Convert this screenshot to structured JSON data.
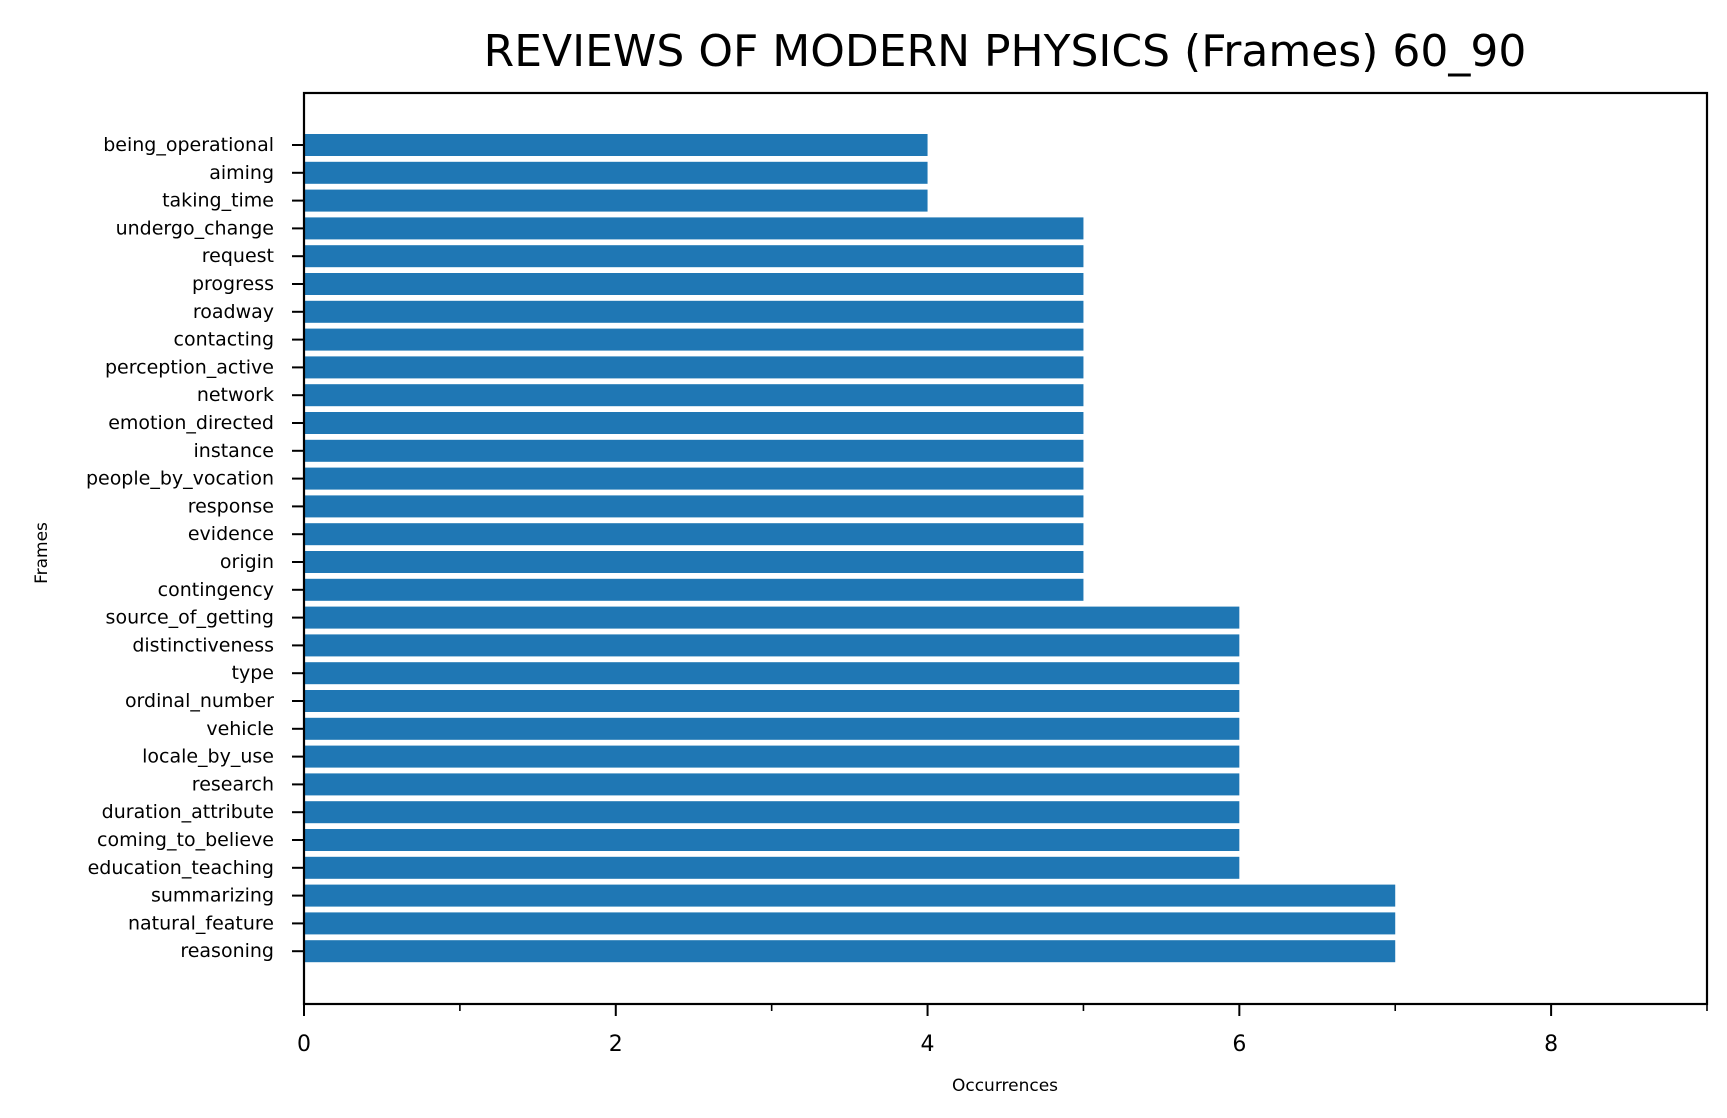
{
  "chart_data": {
    "type": "bar",
    "orientation": "horizontal",
    "title": "REVIEWS OF MODERN PHYSICS (Frames) 60_90",
    "xlabel": "Occurrences",
    "ylabel": "Frames",
    "xlim": [
      0,
      9
    ],
    "xticks_major": [
      0,
      2,
      4,
      6,
      8
    ],
    "xticks_minor": [
      1,
      3,
      5,
      7,
      9
    ],
    "grid": false,
    "bar_color": "#1f77b4",
    "categories": [
      "being_operational",
      "aiming",
      "taking_time",
      "undergo_change",
      "request",
      "progress",
      "roadway",
      "contacting",
      "perception_active",
      "network",
      "emotion_directed",
      "instance",
      "people_by_vocation",
      "response",
      "evidence",
      "origin",
      "contingency",
      "source_of_getting",
      "distinctiveness",
      "type",
      "ordinal_number",
      "vehicle",
      "locale_by_use",
      "research",
      "duration_attribute",
      "coming_to_believe",
      "education_teaching",
      "summarizing",
      "natural_feature",
      "reasoning"
    ],
    "values": [
      4,
      4,
      4,
      5,
      5,
      5,
      5,
      5,
      5,
      5,
      5,
      5,
      5,
      5,
      5,
      5,
      5,
      6,
      6,
      6,
      6,
      6,
      6,
      6,
      6,
      6,
      6,
      7,
      7,
      7
    ]
  }
}
